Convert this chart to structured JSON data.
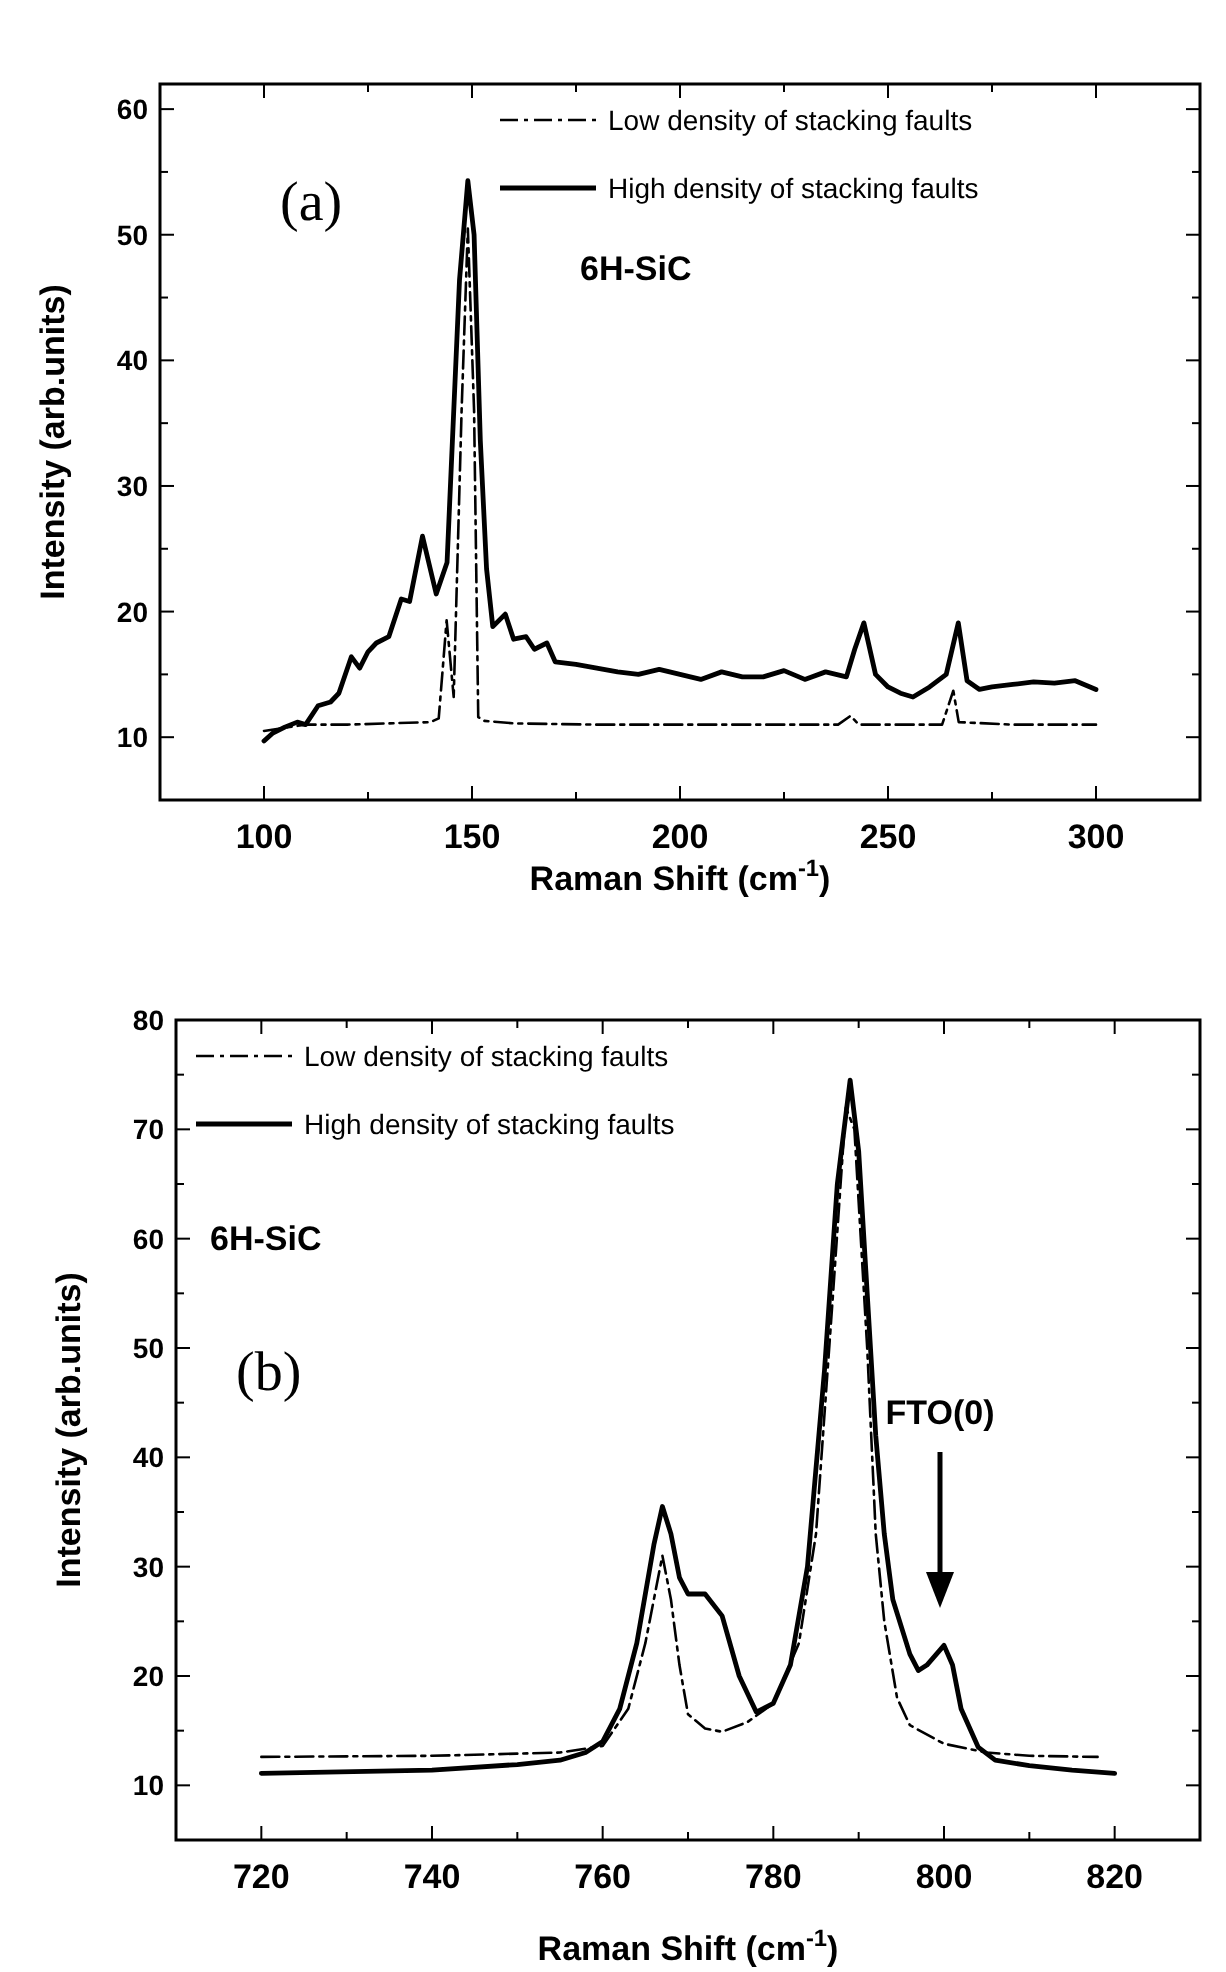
{
  "chart_data": [
    {
      "type": "line",
      "xlabel": "Raman Shift (cm$^{-1}$)",
      "ylabel": "Intensity (arb.units)",
      "xlim": [
        75,
        325
      ],
      "ylim": [
        5,
        62
      ],
      "xticks": [
        100,
        {
          "value": 125,
          "label": null
        },
        150,
        {
          "value": 175,
          "label": null
        },
        200,
        {
          "value": 225,
          "label": null
        },
        250,
        {
          "value": 275,
          "label": null
        },
        300
      ],
      "yticks": [
        {
          "value": 5,
          "label": null
        },
        10,
        {
          "value": 15,
          "label": null
        },
        20,
        {
          "value": 25,
          "label": null
        },
        30,
        {
          "value": 35,
          "label": null
        },
        40,
        {
          "value": 45,
          "label": null
        },
        50,
        {
          "value": 55,
          "label": null
        },
        60
      ],
      "legend": "top right",
      "grid": false,
      "annotations": [
        "(a)",
        "6H-SiC"
      ],
      "series": [
        {
          "name": "Low density of stacking faults",
          "color": "#000000",
          "line_style": "dashed",
          "x": [
            100,
            110,
            120,
            130,
            140,
            142,
            143.9,
            145.6,
            147.5,
            149,
            150.5,
            151.5,
            153,
            160,
            180,
            200,
            220,
            238,
            241,
            243,
            250,
            263,
            265.7,
            267,
            280,
            300
          ],
          "values": [
            10.5,
            11,
            11,
            11.1,
            11.2,
            11.5,
            19.3,
            13.2,
            36,
            50.5,
            36,
            11.6,
            11.3,
            11.1,
            11,
            11,
            11,
            11,
            11.7,
            11,
            11,
            11,
            13.7,
            11.2,
            11,
            11
          ]
        },
        {
          "name": "High density of stacking faults",
          "color": "#000000",
          "line_style": "solid",
          "x": [
            100,
            102,
            105,
            108,
            110,
            113,
            116,
            118,
            121,
            123,
            125,
            127,
            130,
            133,
            135,
            138.1,
            141.4,
            144,
            147,
            149,
            150.5,
            152,
            153.5,
            155,
            158,
            160,
            163,
            165,
            168,
            170,
            175,
            180,
            185,
            190,
            195,
            200,
            205,
            210,
            215,
            220,
            225,
            230,
            235,
            240,
            242,
            244.2,
            247,
            250,
            253,
            256,
            260,
            264,
            266.9,
            269,
            272,
            275,
            280,
            285,
            290,
            295,
            300
          ],
          "values": [
            9.7,
            10.3,
            10.8,
            11.2,
            11,
            12.5,
            12.8,
            13.5,
            16.4,
            15.5,
            16.8,
            17.5,
            18,
            21,
            20.8,
            26,
            21.4,
            23.9,
            46.4,
            54.3,
            50,
            33.6,
            23.4,
            18.8,
            19.8,
            17.8,
            18,
            17,
            17.5,
            16,
            15.8,
            15.5,
            15.2,
            15,
            15.4,
            15,
            14.6,
            15.2,
            14.8,
            14.8,
            15.3,
            14.6,
            15.2,
            14.8,
            17,
            19.1,
            15,
            14,
            13.5,
            13.2,
            14,
            15,
            19.1,
            14.5,
            13.8,
            14,
            14.2,
            14.4,
            14.3,
            14.5,
            13.8
          ]
        }
      ]
    },
    {
      "type": "line",
      "xlabel": "Raman Shift (cm$^{-1}$)",
      "ylabel": "Intensity (arb.units)",
      "xlim": [
        710,
        830
      ],
      "ylim": [
        5,
        80
      ],
      "xticks": [
        720,
        {
          "value": 730,
          "label": null
        },
        740,
        {
          "value": 750,
          "label": null
        },
        760,
        {
          "value": 770,
          "label": null
        },
        780,
        {
          "value": 790,
          "label": null
        },
        800,
        {
          "value": 810,
          "label": null
        },
        820
      ],
      "yticks": [
        {
          "value": 5,
          "label": null
        },
        10,
        {
          "value": 15,
          "label": null
        },
        20,
        {
          "value": 25,
          "label": null
        },
        30,
        {
          "value": 35,
          "label": null
        },
        40,
        {
          "value": 45,
          "label": null
        },
        50,
        {
          "value": 55,
          "label": null
        },
        60,
        {
          "value": 65,
          "label": null
        },
        70,
        {
          "value": 75,
          "label": null
        },
        80
      ],
      "legend": "top left",
      "grid": false,
      "annotations": [
        "6H-SiC",
        "(b)",
        "FTO(0)"
      ],
      "series": [
        {
          "name": "Low density of stacking faults",
          "color": "#000000",
          "line_style": "dashed",
          "x": [
            720,
            740,
            755,
            760,
            763,
            765,
            767,
            768,
            769,
            770,
            772,
            774,
            777,
            780,
            783,
            785,
            787,
            788.5,
            789.5,
            791,
            792,
            793,
            794.5,
            796,
            800,
            805,
            810,
            818
          ],
          "values": [
            12.6,
            12.7,
            13,
            13.6,
            17,
            23,
            31,
            27,
            21,
            16.5,
            15.2,
            14.9,
            15.8,
            17.5,
            23,
            33,
            55,
            72,
            70,
            50,
            33,
            25,
            18,
            15.5,
            13.8,
            13,
            12.7,
            12.6
          ]
        },
        {
          "name": "High density of stacking faults",
          "color": "#000000",
          "line_style": "solid",
          "x": [
            720,
            740,
            750,
            755,
            758,
            760,
            762,
            764,
            766,
            767,
            768,
            769,
            770,
            772,
            774,
            776,
            778,
            780,
            782,
            784,
            786,
            787.5,
            789,
            790,
            791,
            792,
            793,
            794,
            796,
            797,
            798,
            800,
            801,
            802,
            804,
            806,
            810,
            815,
            820
          ],
          "values": [
            11.1,
            11.4,
            11.9,
            12.3,
            13,
            14,
            17,
            23,
            32,
            35.5,
            33,
            29,
            27.5,
            27.5,
            25.5,
            20,
            16.7,
            17.5,
            21,
            30,
            48,
            65,
            74.5,
            68,
            55,
            42,
            33,
            27,
            22,
            20.5,
            21,
            22.8,
            21,
            17,
            13.5,
            12.3,
            11.8,
            11.4,
            11.1
          ]
        }
      ]
    }
  ]
}
